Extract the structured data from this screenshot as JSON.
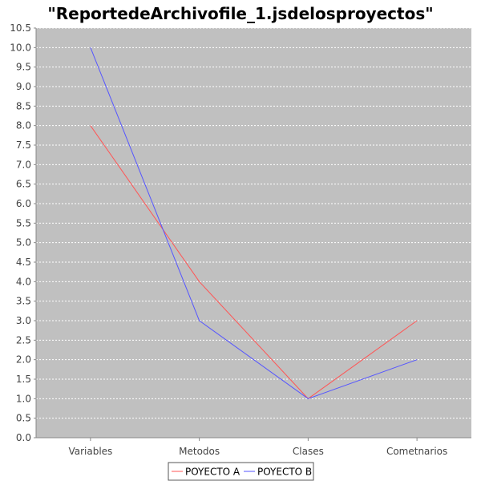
{
  "chart_data": {
    "type": "line",
    "title": "\"ReportedeArchivofile_1.jsdelosproyectos\"",
    "xlabel": "",
    "ylabel": "",
    "categories": [
      "Variables",
      "Metodos",
      "Clases",
      "Cometnarios"
    ],
    "series": [
      {
        "name": "POYECTO A",
        "values": [
          8.0,
          4.0,
          1.0,
          3.0
        ],
        "color": "#ff5555"
      },
      {
        "name": "POYECTO B",
        "values": [
          10.0,
          3.0,
          1.0,
          2.0
        ],
        "color": "#5555ff"
      }
    ],
    "ylim": [
      0.0,
      10.5
    ],
    "ytick_step": 0.5,
    "grid": true,
    "legend_position": "bottom",
    "plot_background": "#c0c0c0",
    "gridline_color": "#ffffff"
  }
}
